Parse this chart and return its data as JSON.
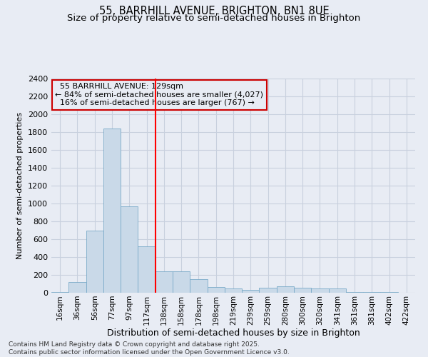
{
  "title_line1": "55, BARRHILL AVENUE, BRIGHTON, BN1 8UE",
  "title_line2": "Size of property relative to semi-detached houses in Brighton",
  "xlabel": "Distribution of semi-detached houses by size in Brighton",
  "ylabel": "Number of semi-detached properties",
  "footer": "Contains HM Land Registry data © Crown copyright and database right 2025.\nContains public sector information licensed under the Open Government Licence v3.0.",
  "categories": [
    "16sqm",
    "36sqm",
    "56sqm",
    "77sqm",
    "97sqm",
    "117sqm",
    "138sqm",
    "158sqm",
    "178sqm",
    "198sqm",
    "219sqm",
    "239sqm",
    "259sqm",
    "280sqm",
    "300sqm",
    "320sqm",
    "341sqm",
    "361sqm",
    "381sqm",
    "402sqm",
    "422sqm"
  ],
  "values": [
    10,
    120,
    700,
    1840,
    970,
    520,
    240,
    240,
    150,
    65,
    50,
    30,
    60,
    70,
    55,
    50,
    45,
    10,
    10,
    5,
    3
  ],
  "bar_color": "#c9d9e8",
  "bar_edge_color": "#7aaac8",
  "grid_color": "#c8d0de",
  "background_color": "#e8ecf4",
  "vline_x": 5.5,
  "vline_color": "red",
  "annotation_text": "  55 BARRHILL AVENUE: 129sqm\n← 84% of semi-detached houses are smaller (4,027)\n  16% of semi-detached houses are larger (767) →",
  "annotation_box_color": "#cc0000",
  "ylim": [
    0,
    2400
  ],
  "yticks": [
    0,
    200,
    400,
    600,
    800,
    1000,
    1200,
    1400,
    1600,
    1800,
    2000,
    2200,
    2400
  ],
  "title_fontsize": 10.5,
  "subtitle_fontsize": 9.5,
  "footer_fontsize": 6.5
}
